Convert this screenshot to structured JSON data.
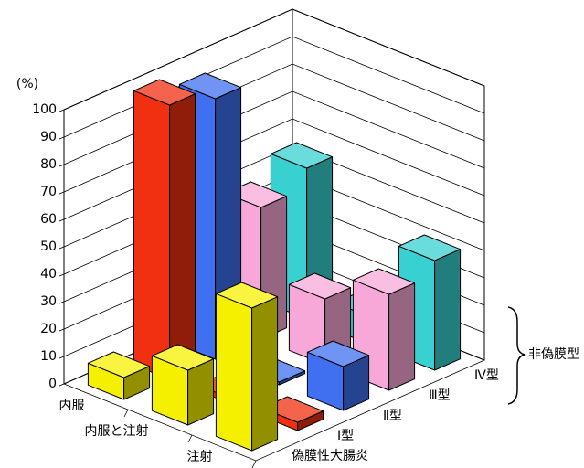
{
  "chart_data": {
    "type": "bar3d",
    "ylabel": "(%)",
    "categories": [
      "内服",
      "内服と注射",
      "注射"
    ],
    "series": [
      {
        "name": "偽膜性大腸炎",
        "color": "#f5f000",
        "values": [
          8,
          20,
          52
        ]
      },
      {
        "name": "Ⅰ型",
        "color": "#f03010",
        "values": [
          100,
          2,
          3
        ]
      },
      {
        "name": "Ⅱ型",
        "color": "#4070f0",
        "values": [
          95,
          1,
          16
        ]
      },
      {
        "name": "Ⅲ型",
        "color": "#f8a8d8",
        "values": [
          48,
          24,
          35
        ]
      },
      {
        "name": "Ⅳ型",
        "color": "#38d0d0",
        "values": [
          55,
          10,
          40
        ]
      }
    ],
    "group_label": "非偽膜型",
    "ylim": [
      0,
      100
    ],
    "yticks": [
      0,
      10,
      20,
      30,
      40,
      50,
      60,
      70,
      80,
      90,
      100
    ],
    "grid": true
  }
}
